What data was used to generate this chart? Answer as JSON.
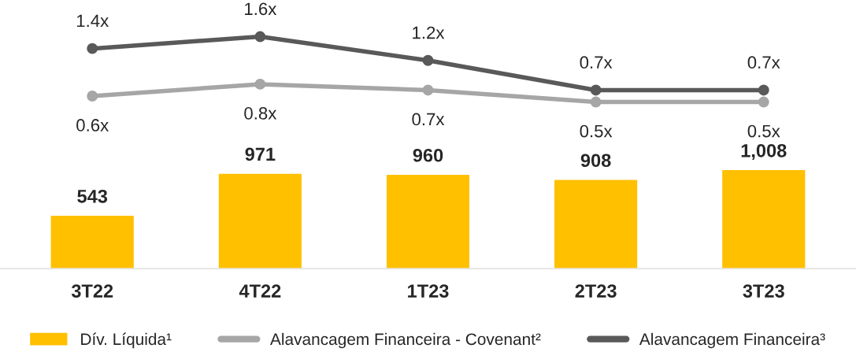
{
  "chart_data": [
    {
      "type": "line",
      "categories": [
        null,
        null,
        null,
        null,
        null
      ],
      "series": [
        {
          "name": "Alavancagem Financeira - Covenant²",
          "color": "#a6a6a6",
          "values": [
            0.6,
            0.8,
            0.7,
            0.5,
            0.5
          ],
          "value_labels": [
            "0.6x",
            "0.8x",
            "0.7x",
            "0.5x",
            "0.5x"
          ]
        },
        {
          "name": "Alavancagem Financeira³",
          "color": "#595959",
          "values": [
            1.4,
            1.6,
            1.2,
            0.7,
            0.7
          ],
          "value_labels": [
            "1.4x",
            "1.6x",
            "1.2x",
            "0.7x",
            "0.7x"
          ]
        }
      ],
      "tick_labels": false,
      "legend": "bottom",
      "marker": "circle",
      "line_style": "solid"
    },
    {
      "type": "bar",
      "categories": [
        "3T22",
        "4T22",
        "1T23",
        "2T23",
        "3T23"
      ],
      "series": [
        {
          "name": "Dív. Líquida¹",
          "color": "#ffc000",
          "values": [
            543,
            971,
            960,
            908,
            1008
          ],
          "value_labels": [
            "543",
            "971",
            "960",
            "908",
            "1,008"
          ]
        }
      ],
      "tick_labels": "x",
      "legend": "bottom"
    }
  ]
}
